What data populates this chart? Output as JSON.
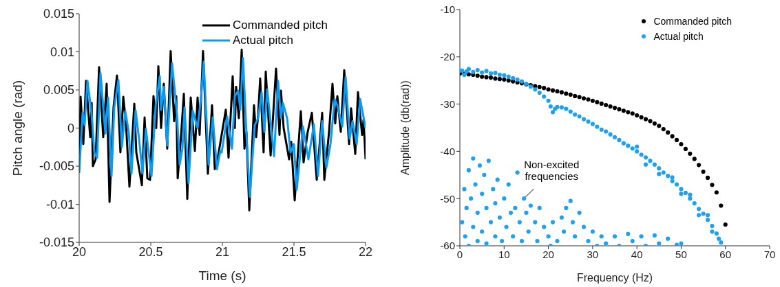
{
  "chart_data": [
    {
      "type": "line",
      "xlabel": "Time (s)",
      "ylabel": "Pitch angle (rad)",
      "xlim": [
        20,
        22
      ],
      "xticks": [
        20,
        20.5,
        21,
        21.5,
        22
      ],
      "ylim": [
        -0.015,
        0.015
      ],
      "yticks": [
        -0.015,
        -0.01,
        -0.005,
        0,
        0.005,
        0.01,
        0.015
      ],
      "legend": "top right",
      "line_style": "solid",
      "series": [
        {
          "name": "Commanded pitch",
          "color": "#000000",
          "x": [
            20,
            20.01,
            20.029,
            20.048,
            20.077,
            20.087,
            20.096,
            20.115,
            20.139,
            20.168,
            20.192,
            20.212,
            20.24,
            20.264,
            20.288,
            20.308,
            20.327,
            20.351,
            20.385,
            20.399,
            20.438,
            20.457,
            20.476,
            20.495,
            20.519,
            20.538,
            20.553,
            20.572,
            20.591,
            20.615,
            20.639,
            20.663,
            20.678,
            20.688,
            20.712,
            20.731,
            20.755,
            20.779,
            20.808,
            20.827,
            20.841,
            20.865,
            20.899,
            20.928,
            20.947,
            20.971,
            21.024,
            21.043,
            21.072,
            21.087,
            21.096,
            21.115,
            21.135,
            21.154,
            21.168,
            21.188,
            21.221,
            21.236,
            21.25,
            21.264,
            21.288,
            21.303,
            21.337,
            21.375,
            21.399,
            21.409,
            21.428,
            21.466,
            21.481,
            21.505,
            21.548,
            21.567,
            21.596,
            21.625,
            21.659,
            21.697,
            21.712,
            21.745,
            21.769,
            21.788,
            21.803,
            21.827,
            21.851,
            21.885,
            21.899,
            21.928,
            21.947,
            21.976,
            21.986,
            22
          ],
          "values": [
            -0.0048,
            0.0041,
            -0.0021,
            0.0062,
            -0.0012,
            0.0033,
            -0.005,
            -0.0041,
            0.008,
            -0.0012,
            0.0058,
            -0.0097,
            0.0027,
            0.0069,
            -0.0032,
            0.0041,
            0.0006,
            -0.0077,
            0.0032,
            -0.0032,
            -0.0075,
            0.0014,
            -0.0066,
            -0.0068,
            0.0042,
            0,
            0.0081,
            0,
            0.0058,
            -0.0027,
            0.0101,
            0.0009,
            0.0042,
            -0.0066,
            -0.0009,
            0.0045,
            -0.0093,
            0.004,
            -0.003,
            0.004,
            -0.0009,
            0.0101,
            -0.006,
            0.003,
            -0.0054,
            -0.0036,
            0.0024,
            -0.0039,
            0.0068,
            0,
            0.0054,
            0.0013,
            0.0103,
            -0.0027,
            -0.0005,
            -0.0108,
            0.003,
            -0.0012,
            0.0018,
            0.0065,
            -0.0032,
            0.0074,
            -0.0036,
            0.0078,
            -0.0009,
            0.0049,
            0,
            -0.0041,
            -0.0018,
            -0.0095,
            0.0022,
            -0.0045,
            -0.0005,
            0.002,
            -0.0068,
            0.002,
            -0.0068,
            -0.0005,
            0.0058,
            0.0006,
            0.0042,
            -0.0005,
            0.0076,
            -0.0021,
            0.0026,
            -0.0034,
            0.0047,
            -0.0009,
            0.0011,
            -0.0041
          ]
        },
        {
          "name": "Actual pitch",
          "color": "#0a9cf5",
          "x": [
            20,
            20.024,
            20.038,
            20.058,
            20.087,
            20.106,
            20.125,
            20.149,
            20.183,
            20.202,
            20.226,
            20.245,
            20.274,
            20.298,
            20.322,
            20.346,
            20.365,
            20.394,
            20.418,
            20.442,
            20.466,
            20.505,
            20.534,
            20.563,
            20.572,
            20.591,
            20.615,
            20.649,
            20.683,
            20.702,
            20.721,
            20.736,
            20.764,
            20.793,
            20.827,
            20.851,
            20.87,
            20.904,
            20.933,
            20.962,
            20.986,
            20.995,
            21.034,
            21.067,
            21.087,
            21.111,
            21.125,
            21.144,
            21.168,
            21.192,
            21.226,
            21.25,
            21.274,
            21.293,
            21.313,
            21.361,
            21.389,
            21.409,
            21.423,
            21.452,
            21.476,
            21.5,
            21.519,
            21.563,
            21.601,
            21.639,
            21.668,
            21.697,
            21.726,
            21.755,
            21.784,
            21.803,
            21.837,
            21.861,
            21.889,
            21.909,
            21.938,
            21.962,
            22
          ],
          "values": [
            -0.0059,
            0.002,
            0.0004,
            0.0062,
            0.0018,
            -0.0032,
            -0.0039,
            0.0072,
            -0.0007,
            0.004,
            -0.0063,
            0.0027,
            0.0063,
            -0.0025,
            0.0022,
            -0.0005,
            -0.006,
            0.0023,
            -0.0014,
            -0.0059,
            -0.0001,
            -0.0063,
            0.0029,
            0.0068,
            0.0024,
            0.0054,
            -0.0023,
            0.0085,
            0.0018,
            -0.0048,
            -0.0027,
            0.0027,
            -0.0072,
            0.0023,
            0,
            0.004,
            0.0087,
            -0.0048,
            0.0014,
            -0.0054,
            -0.003,
            -0.0032,
            0.0015,
            -0.0027,
            0.0042,
            0.0049,
            0.0024,
            0.0092,
            -0.0007,
            -0.009,
            0.0004,
            0.0013,
            0.0047,
            -0.0005,
            0.0051,
            -0.0037,
            0.0062,
            0.0013,
            0.0033,
            0.0013,
            -0.0032,
            -0.0021,
            -0.0081,
            0.0002,
            -0.0041,
            0.0005,
            -0.0063,
            0.0009,
            -0.0052,
            -0.0021,
            0.0038,
            0.003,
            0.0002,
            0.0067,
            -0.0014,
            0.0009,
            -0.0021,
            0.0038,
            0
          ]
        }
      ]
    },
    {
      "type": "scatter",
      "xlabel": "Frequency (Hz)",
      "ylabel": "Amplitude (db(rad))",
      "xlim": [
        0,
        70
      ],
      "xticks": [
        0,
        10,
        20,
        30,
        40,
        50,
        60,
        70
      ],
      "ylim": [
        -60,
        -10
      ],
      "yticks": [
        -60,
        -50,
        -40,
        -30,
        -20,
        -10
      ],
      "legend": "top right",
      "marker": "circle",
      "annotations": [
        {
          "text": "Non-excited frequencies",
          "x": 14.5,
          "y": -50
        }
      ],
      "series": [
        {
          "name": "Commanded pitch",
          "color": "#000000",
          "x": [
            0,
            1,
            2,
            3,
            4,
            5,
            6,
            7,
            8,
            9,
            10,
            11,
            12,
            13,
            14,
            15,
            16,
            17,
            18,
            19,
            20,
            21,
            22,
            23,
            24,
            25,
            26,
            27,
            28,
            29,
            30,
            31,
            32,
            33,
            34,
            35,
            36,
            37,
            38,
            39,
            40,
            41,
            42,
            43,
            44,
            45,
            46,
            47,
            48,
            49,
            50,
            51,
            52,
            53,
            54,
            55,
            56,
            57,
            58,
            59,
            60
          ],
          "values": [
            -23.5,
            -23.6,
            -23.7,
            -23.8,
            -24.0,
            -24.2,
            -24.3,
            -24.4,
            -24.6,
            -24.7,
            -24.8,
            -25.0,
            -25.2,
            -25.4,
            -25.6,
            -25.8,
            -26.0,
            -26.2,
            -26.4,
            -26.6,
            -26.9,
            -27.1,
            -27.3,
            -27.5,
            -27.8,
            -28.0,
            -28.3,
            -28.5,
            -28.8,
            -29.0,
            -29.3,
            -29.6,
            -29.9,
            -30.2,
            -30.5,
            -30.8,
            -31.1,
            -31.4,
            -31.7,
            -32.0,
            -32.4,
            -32.8,
            -33.2,
            -33.6,
            -34.1,
            -34.6,
            -35.3,
            -36.0,
            -36.8,
            -37.6,
            -38.5,
            -39.5,
            -40.5,
            -41.6,
            -42.9,
            -44.3,
            -45.6,
            -47.1,
            -48.7,
            -51.5,
            -55.5
          ]
        },
        {
          "name": "Actual pitch",
          "color": "#1fa0f0",
          "x": [
            0,
            0.5,
            1,
            1.5,
            2,
            3,
            4,
            5,
            6,
            7,
            8,
            9,
            10,
            11,
            12,
            13,
            14,
            15,
            16,
            17,
            18,
            19,
            20,
            20.5,
            21,
            21.5,
            22,
            23,
            24,
            25,
            26,
            27,
            28,
            29,
            30,
            31,
            32,
            33,
            34,
            35,
            36,
            37,
            38,
            39,
            40,
            41,
            42,
            43,
            44,
            45,
            46,
            47,
            48,
            49,
            50,
            51,
            52,
            53,
            54,
            55,
            56,
            57,
            58,
            58.5,
            59,
            40,
            42,
            45,
            48,
            50,
            52,
            54,
            56,
            57,
            0.5,
            1,
            1.2,
            1.5,
            2,
            2,
            2.5,
            3,
            3,
            3.5,
            4,
            4,
            4.5,
            5,
            5,
            5.5,
            6,
            6,
            6.5,
            7,
            7.5,
            8,
            8,
            8.5,
            9,
            9.5,
            10,
            10.5,
            11,
            11.5,
            12,
            12.5,
            13,
            13.5,
            14,
            14.5,
            15,
            15.5,
            16,
            17,
            17.5,
            18,
            19,
            20,
            20.5,
            21,
            22,
            23,
            23.5,
            24,
            25,
            25.5,
            26,
            27,
            28,
            29,
            30,
            31,
            32,
            33,
            35,
            36,
            38,
            39,
            41,
            42,
            44,
            45,
            47,
            49,
            50
          ],
          "values": [
            -22.9,
            -22.9,
            -23.8,
            -23.1,
            -22.6,
            -23.2,
            -22.8,
            -23.3,
            -23.0,
            -23.5,
            -23.4,
            -23.8,
            -23.9,
            -24.2,
            -24.5,
            -24.8,
            -25.2,
            -25.7,
            -26.3,
            -26.9,
            -27.6,
            -28.4,
            -29.3,
            -30.5,
            -31.7,
            -31.0,
            -30.6,
            -30.7,
            -31.0,
            -31.6,
            -32.2,
            -32.6,
            -33.2,
            -33.7,
            -34.2,
            -34.8,
            -35.4,
            -35.8,
            -36.4,
            -37.0,
            -37.6,
            -38.3,
            -38.8,
            -39.4,
            -40.0,
            -40.7,
            -41.3,
            -42.0,
            -42.8,
            -43.6,
            -44.5,
            -45.2,
            -46.3,
            -47.0,
            -48.0,
            -48.8,
            -50.0,
            -51.0,
            -52.2,
            -53.2,
            -54.5,
            -55.8,
            -57.4,
            -58.5,
            -59.3,
            -39.0,
            -42.8,
            -44.8,
            -45.5,
            -49.0,
            -49.2,
            -53.5,
            -53.5,
            -57.0,
            -55,
            -48,
            -58,
            -52,
            -44,
            -60,
            -50,
            -41.5,
            -56,
            -47,
            -53,
            -59,
            -43,
            -49,
            -57,
            -45,
            -52,
            -59.5,
            -42,
            -55,
            -48,
            -58,
            -51,
            -46,
            -54,
            -59,
            -50,
            -56,
            -47,
            -53,
            -58,
            -52,
            -44.5,
            -55,
            -59,
            -50,
            -53,
            -57,
            -51.5,
            -55,
            -59,
            -52,
            -56,
            -58,
            -60,
            -55,
            -59,
            -54,
            -57,
            -52,
            -50.5,
            -55,
            -58,
            -53,
            -56,
            -59,
            -57,
            -60,
            -58,
            -59.5,
            -58,
            -60,
            -57.5,
            -59,
            -58,
            -60,
            -57.8,
            -59.5,
            -58.5,
            -59.8,
            -59.5
          ]
        }
      ]
    }
  ]
}
